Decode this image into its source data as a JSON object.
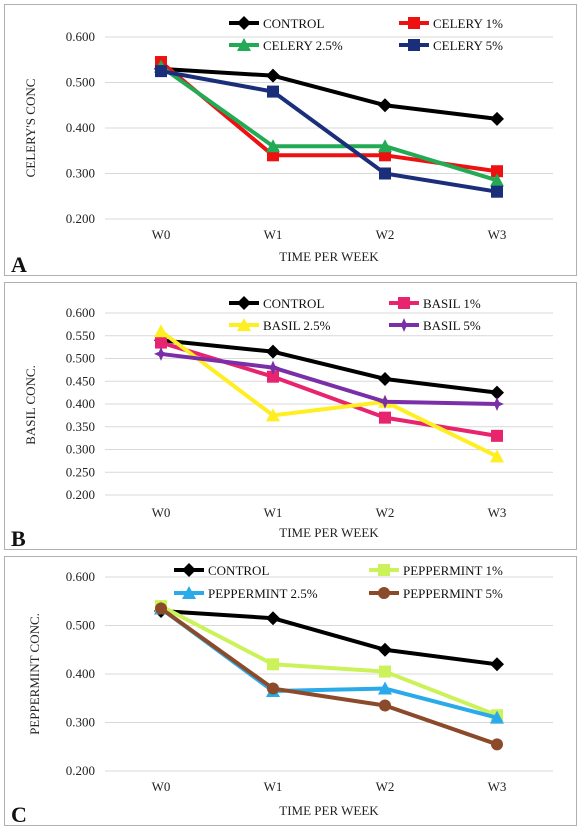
{
  "chart_data": [
    {
      "type": "line",
      "panel_label": "A",
      "categories": [
        "W0",
        "W1",
        "W2",
        "W3"
      ],
      "xlabel": "TIME PER WEEK",
      "ylabel": "CELERY'S CONC",
      "ylim": [
        0.2,
        0.6
      ],
      "yticks": [
        "0.200",
        "0.300",
        "0.400",
        "0.500",
        "0.600"
      ],
      "legend_placement": "top",
      "series": [
        {
          "name": "CONTROL",
          "values": [
            0.53,
            0.515,
            0.45,
            0.42
          ],
          "color": "#000000",
          "marker": "diamond"
        },
        {
          "name": "CELERY 1%",
          "values": [
            0.545,
            0.34,
            0.34,
            0.305
          ],
          "color": "#ee1111",
          "marker": "square"
        },
        {
          "name": "CELERY 2.5%",
          "values": [
            0.535,
            0.36,
            0.36,
            0.285
          ],
          "color": "#22aa55",
          "marker": "triangle"
        },
        {
          "name": "CELERY 5%",
          "values": [
            0.525,
            0.48,
            0.3,
            0.26
          ],
          "color": "#1a2e7a",
          "marker": "square"
        }
      ]
    },
    {
      "type": "line",
      "panel_label": "B",
      "categories": [
        "W0",
        "W1",
        "W2",
        "W3"
      ],
      "xlabel": "TIME PER WEEK",
      "ylabel": "BASIL CONC.",
      "ylim": [
        0.2,
        0.6
      ],
      "yticks": [
        "0.200",
        "0.250",
        "0.300",
        "0.350",
        "0.400",
        "0.450",
        "0.500",
        "0.550",
        "0.600"
      ],
      "legend_placement": "top",
      "series": [
        {
          "name": "CONTROL",
          "values": [
            0.54,
            0.515,
            0.455,
            0.425
          ],
          "color": "#000000",
          "marker": "diamond"
        },
        {
          "name": "BASIL 1%",
          "values": [
            0.535,
            0.46,
            0.37,
            0.33
          ],
          "color": "#e8246e",
          "marker": "square"
        },
        {
          "name": "BASIL 2.5%",
          "values": [
            0.56,
            0.375,
            0.405,
            0.285
          ],
          "color": "#ffee22",
          "marker": "triangle"
        },
        {
          "name": "BASIL 5%",
          "values": [
            0.51,
            0.48,
            0.405,
            0.4
          ],
          "color": "#7a2fa8",
          "marker": "star"
        }
      ]
    },
    {
      "type": "line",
      "panel_label": "C",
      "categories": [
        "W0",
        "W1",
        "W2",
        "W3"
      ],
      "xlabel": "TIME PER WEEK",
      "ylabel": "PEPPERMINT CONC.",
      "ylim": [
        0.2,
        0.6
      ],
      "yticks": [
        "0.200",
        "0.300",
        "0.400",
        "0.500",
        "0.600"
      ],
      "legend_placement": "top",
      "series": [
        {
          "name": "CONTROL",
          "values": [
            0.53,
            0.515,
            0.45,
            0.42
          ],
          "color": "#000000",
          "marker": "diamond"
        },
        {
          "name": "PEPPERMINT 1%",
          "values": [
            0.54,
            0.42,
            0.405,
            0.315
          ],
          "color": "#ccf25a",
          "marker": "square"
        },
        {
          "name": "PEPPERMINT 2.5%",
          "values": [
            0.535,
            0.365,
            0.37,
            0.31
          ],
          "color": "#2aaae8",
          "marker": "triangle"
        },
        {
          "name": "PEPPERMINT 5%",
          "values": [
            0.535,
            0.37,
            0.335,
            0.255
          ],
          "color": "#8b4a2a",
          "marker": "circle"
        }
      ]
    }
  ]
}
